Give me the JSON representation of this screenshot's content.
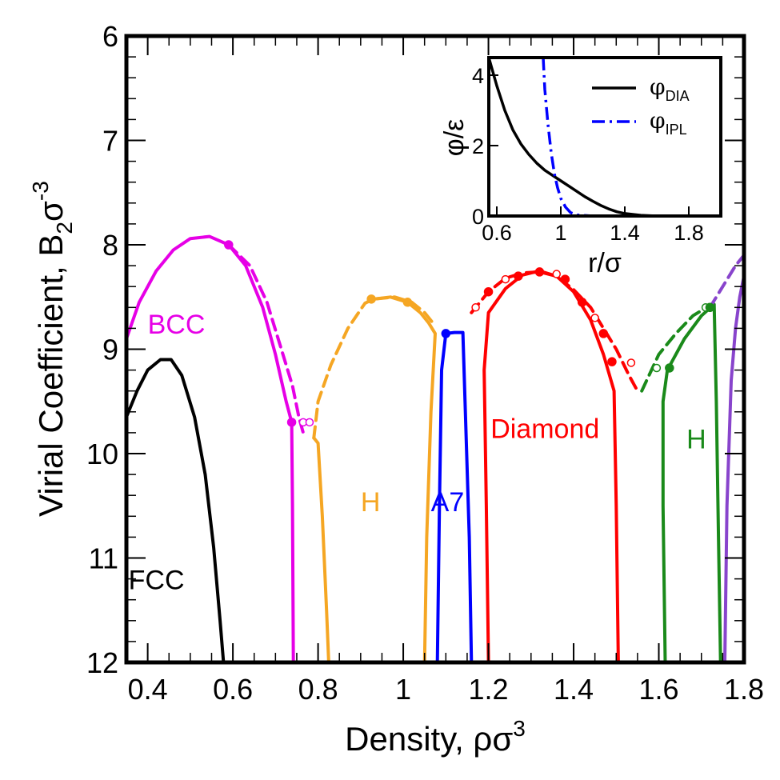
{
  "chart_data": {
    "type": "line",
    "xlabel": "Density, ρσ",
    "xlabel_sup": "3",
    "ylabel": "Virial Coefficient, B",
    "ylabel_sub": "2",
    "ylabel_sigma": "σ",
    "ylabel_sup": "-3",
    "xlim": [
      0.35,
      1.8
    ],
    "ylim": [
      12,
      6
    ],
    "y_inverted": true,
    "xticks": [
      0.4,
      0.6,
      0.8,
      1.0,
      1.2,
      1.4,
      1.6,
      1.8
    ],
    "xtick_labels": [
      "0.4",
      "0.6",
      "0.8",
      "1",
      "1.2",
      "1.4",
      "1.6",
      "1.8"
    ],
    "yticks": [
      6,
      7,
      8,
      9,
      10,
      11,
      12
    ],
    "ytick_labels": [
      "6",
      "7",
      "8",
      "9",
      "10",
      "11",
      "12"
    ],
    "colors": {
      "FCC": "#000000",
      "FCC_overlay": "#e600e6",
      "BCC": "#e600e6",
      "H_orange": "#f5a623",
      "A7": "#0000ff",
      "Diamond": "#ff0000",
      "H_green": "#1a8a1a",
      "extra": "#8844cc"
    },
    "phase_labels": [
      {
        "text": "FCC",
        "color": "#000000",
        "x": 0.355,
        "y": 11.3
      },
      {
        "text": "BCC",
        "color": "#e600e6",
        "x": 0.4,
        "y": 8.85
      },
      {
        "text": "H",
        "color": "#f5a623",
        "x": 0.9,
        "y": 10.55
      },
      {
        "text": "A7",
        "color": "#0000ff",
        "x": 1.065,
        "y": 10.55
      },
      {
        "text": "Diamond",
        "color": "#ff0000",
        "x": 1.205,
        "y": 9.85
      },
      {
        "text": "H",
        "color": "#1a8a1a",
        "x": 1.665,
        "y": 9.95
      }
    ],
    "series": [
      {
        "name": "FCC",
        "color": "#000000",
        "dash": false,
        "points": [
          [
            0.35,
            9.65
          ],
          [
            0.375,
            9.4
          ],
          [
            0.4,
            9.2
          ],
          [
            0.43,
            9.1
          ],
          [
            0.455,
            9.1
          ],
          [
            0.48,
            9.25
          ],
          [
            0.51,
            9.65
          ],
          [
            0.535,
            10.2
          ],
          [
            0.555,
            10.9
          ],
          [
            0.57,
            11.6
          ],
          [
            0.578,
            12.0
          ]
        ]
      },
      {
        "name": "BCC",
        "color": "#e600e6",
        "dash": false,
        "points": [
          [
            0.35,
            8.9
          ],
          [
            0.38,
            8.55
          ],
          [
            0.42,
            8.25
          ],
          [
            0.46,
            8.05
          ],
          [
            0.5,
            7.94
          ],
          [
            0.545,
            7.92
          ],
          [
            0.59,
            8.0
          ],
          [
            0.63,
            8.2
          ],
          [
            0.67,
            8.6
          ],
          [
            0.7,
            9.05
          ],
          [
            0.725,
            9.5
          ],
          [
            0.738,
            9.7
          ],
          [
            0.74,
            10.5
          ],
          [
            0.742,
            12.0
          ]
        ]
      },
      {
        "name": "BCC (dashed)",
        "color": "#e600e6",
        "dash": true,
        "points": [
          [
            0.59,
            8.0
          ],
          [
            0.64,
            8.2
          ],
          [
            0.68,
            8.55
          ],
          [
            0.71,
            8.95
          ],
          [
            0.74,
            9.35
          ],
          [
            0.755,
            9.65
          ],
          [
            0.765,
            9.8
          ]
        ]
      },
      {
        "name": "H (orange)",
        "color": "#f5a623",
        "dash": false,
        "points": [
          [
            0.79,
            9.85
          ],
          [
            0.8,
            9.9
          ],
          [
            0.81,
            10.6
          ],
          [
            0.82,
            11.5
          ],
          [
            0.825,
            12.0
          ]
        ]
      },
      {
        "name": "H (orange) arch",
        "color": "#f5a623",
        "dash": false,
        "points": [
          [
            0.93,
            8.52
          ],
          [
            0.97,
            8.5
          ],
          [
            1.01,
            8.55
          ],
          [
            1.04,
            8.65
          ],
          [
            1.06,
            8.75
          ],
          [
            1.075,
            8.85
          ],
          [
            1.065,
            9.6
          ],
          [
            1.055,
            10.8
          ],
          [
            1.05,
            12.0
          ]
        ]
      },
      {
        "name": "H (orange, dashed)",
        "color": "#f5a623",
        "dash": true,
        "points": [
          [
            0.79,
            9.85
          ],
          [
            0.8,
            9.5
          ],
          [
            0.83,
            9.15
          ],
          [
            0.87,
            8.8
          ],
          [
            0.91,
            8.56
          ],
          [
            0.93,
            8.52
          ],
          [
            0.98,
            8.5
          ],
          [
            1.02,
            8.55
          ],
          [
            1.05,
            8.65
          ],
          [
            1.07,
            8.75
          ]
        ]
      },
      {
        "name": "A7",
        "color": "#0000ff",
        "dash": false,
        "points": [
          [
            1.08,
            12.0
          ],
          [
            1.085,
            10.5
          ],
          [
            1.09,
            9.2
          ],
          [
            1.1,
            8.85
          ],
          [
            1.12,
            8.84
          ],
          [
            1.14,
            8.84
          ],
          [
            1.145,
            9.5
          ],
          [
            1.155,
            10.8
          ],
          [
            1.16,
            12.0
          ]
        ]
      },
      {
        "name": "Diamond",
        "color": "#ff0000",
        "dash": false,
        "points": [
          [
            1.2,
            12.0
          ],
          [
            1.195,
            10.5
          ],
          [
            1.19,
            9.2
          ],
          [
            1.2,
            8.65
          ],
          [
            1.24,
            8.42
          ],
          [
            1.28,
            8.29
          ],
          [
            1.32,
            8.25
          ],
          [
            1.36,
            8.3
          ],
          [
            1.4,
            8.45
          ],
          [
            1.44,
            8.72
          ],
          [
            1.47,
            9.05
          ],
          [
            1.495,
            9.4
          ],
          [
            1.5,
            10.5
          ],
          [
            1.505,
            12.0
          ]
        ]
      },
      {
        "name": "Diamond (dashed)",
        "color": "#ff0000",
        "dash": true,
        "points": [
          [
            1.16,
            8.65
          ],
          [
            1.2,
            8.45
          ],
          [
            1.24,
            8.32
          ],
          [
            1.28,
            8.27
          ],
          [
            1.32,
            8.26
          ],
          [
            1.36,
            8.3
          ],
          [
            1.4,
            8.43
          ],
          [
            1.44,
            8.6
          ],
          [
            1.47,
            8.8
          ],
          [
            1.5,
            9.0
          ],
          [
            1.53,
            9.25
          ],
          [
            1.55,
            9.4
          ]
        ]
      },
      {
        "name": "H (green)",
        "color": "#1a8a1a",
        "dash": false,
        "points": [
          [
            1.615,
            12.0
          ],
          [
            1.61,
            10.5
          ],
          [
            1.61,
            9.5
          ],
          [
            1.62,
            9.2
          ],
          [
            1.66,
            8.9
          ],
          [
            1.7,
            8.68
          ],
          [
            1.73,
            8.57
          ],
          [
            1.735,
            9.5
          ],
          [
            1.74,
            10.8
          ],
          [
            1.745,
            12.0
          ]
        ]
      },
      {
        "name": "H (green, dashed)",
        "color": "#1a8a1a",
        "dash": true,
        "points": [
          [
            1.56,
            9.4
          ],
          [
            1.6,
            9.05
          ],
          [
            1.64,
            8.85
          ],
          [
            1.68,
            8.68
          ],
          [
            1.72,
            8.58
          ]
        ]
      },
      {
        "name": "extra (purple)",
        "color": "#8844cc",
        "dash": false,
        "points": [
          [
            1.755,
            12.0
          ],
          [
            1.76,
            10.5
          ],
          [
            1.77,
            9.3
          ],
          [
            1.78,
            8.8
          ],
          [
            1.79,
            8.5
          ],
          [
            1.8,
            8.3
          ]
        ]
      },
      {
        "name": "extra (purple, dashed)",
        "color": "#8844cc",
        "dash": true,
        "points": [
          [
            1.72,
            8.6
          ],
          [
            1.75,
            8.4
          ],
          [
            1.78,
            8.2
          ],
          [
            1.8,
            8.1
          ]
        ]
      }
    ],
    "markers": [
      {
        "x": 0.59,
        "y": 8.0,
        "color": "#e600e6",
        "filled": true
      },
      {
        "x": 0.738,
        "y": 9.7,
        "color": "#e600e6",
        "filled": true
      },
      {
        "x": 0.765,
        "y": 9.7,
        "color": "#e600e6",
        "filled": false
      },
      {
        "x": 0.925,
        "y": 8.52,
        "color": "#f5a623",
        "filled": true
      },
      {
        "x": 1.01,
        "y": 8.55,
        "color": "#f5a623",
        "filled": true
      },
      {
        "x": 1.1,
        "y": 8.85,
        "color": "#0000ff",
        "filled": true
      },
      {
        "x": 1.17,
        "y": 8.6,
        "color": "#ff0000",
        "filled": false
      },
      {
        "x": 1.2,
        "y": 8.45,
        "color": "#ff0000",
        "filled": true
      },
      {
        "x": 1.24,
        "y": 8.33,
        "color": "#ff0000",
        "filled": false
      },
      {
        "x": 1.27,
        "y": 8.3,
        "color": "#ff0000",
        "filled": true
      },
      {
        "x": 1.32,
        "y": 8.26,
        "color": "#ff0000",
        "filled": true
      },
      {
        "x": 1.36,
        "y": 8.28,
        "color": "#ff0000",
        "filled": false
      },
      {
        "x": 1.38,
        "y": 8.33,
        "color": "#ff0000",
        "filled": true
      },
      {
        "x": 1.42,
        "y": 8.55,
        "color": "#ff0000",
        "filled": true
      },
      {
        "x": 1.45,
        "y": 8.7,
        "color": "#ff0000",
        "filled": false
      },
      {
        "x": 1.47,
        "y": 8.85,
        "color": "#ff0000",
        "filled": true
      },
      {
        "x": 1.49,
        "y": 9.12,
        "color": "#ff0000",
        "filled": true
      },
      {
        "x": 1.535,
        "y": 9.13,
        "color": "#ff0000",
        "filled": false
      },
      {
        "x": 1.595,
        "y": 9.18,
        "color": "#1a8a1a",
        "filled": false
      },
      {
        "x": 1.625,
        "y": 9.18,
        "color": "#1a8a1a",
        "filled": true
      },
      {
        "x": 1.71,
        "y": 8.6,
        "color": "#1a8a1a",
        "filled": false
      },
      {
        "x": 1.72,
        "y": 8.6,
        "color": "#1a8a1a",
        "filled": true
      },
      {
        "x": 0.78,
        "y": 9.7,
        "color": "#e600e6",
        "filled": false
      }
    ],
    "inset": {
      "xlabel": "r/σ",
      "ylabel": "φ/ε",
      "xlim": [
        0.55,
        2.0
      ],
      "ylim": [
        0,
        4.5
      ],
      "xticks": [
        0.6,
        1.0,
        1.4,
        1.8
      ],
      "xtick_labels": [
        "0.6",
        "1",
        "1.4",
        "1.8"
      ],
      "yticks": [
        0,
        2,
        4
      ],
      "ytick_labels": [
        "0",
        "2",
        "4"
      ],
      "legend": [
        {
          "label": "φ",
          "sub": "DIA",
          "color": "#000000",
          "dash": false
        },
        {
          "label": "φ",
          "sub": "IPL",
          "color": "#0000ff",
          "dash": true
        }
      ],
      "series": [
        {
          "name": "φDIA",
          "color": "#000000",
          "dash": false,
          "points": [
            [
              0.55,
              4.5
            ],
            [
              0.6,
              3.7
            ],
            [
              0.65,
              3.0
            ],
            [
              0.7,
              2.45
            ],
            [
              0.75,
              2.05
            ],
            [
              0.8,
              1.75
            ],
            [
              0.85,
              1.5
            ],
            [
              0.9,
              1.3
            ],
            [
              0.95,
              1.15
            ],
            [
              1.0,
              1.0
            ],
            [
              1.05,
              0.85
            ],
            [
              1.1,
              0.7
            ],
            [
              1.15,
              0.55
            ],
            [
              1.2,
              0.42
            ],
            [
              1.25,
              0.3
            ],
            [
              1.3,
              0.2
            ],
            [
              1.35,
              0.12
            ],
            [
              1.4,
              0.07
            ],
            [
              1.5,
              0.02
            ],
            [
              1.6,
              0.0
            ],
            [
              1.95,
              0.0
            ]
          ]
        },
        {
          "name": "φIPL",
          "color": "#0000ff",
          "dash": true,
          "points": [
            [
              0.89,
              4.5
            ],
            [
              0.9,
              3.6
            ],
            [
              0.92,
              2.6
            ],
            [
              0.94,
              1.8
            ],
            [
              0.96,
              1.2
            ],
            [
              0.98,
              0.8
            ],
            [
              1.0,
              0.5
            ],
            [
              1.03,
              0.25
            ],
            [
              1.06,
              0.1
            ],
            [
              1.1,
              0.03
            ],
            [
              1.2,
              0.0
            ]
          ]
        }
      ]
    }
  }
}
